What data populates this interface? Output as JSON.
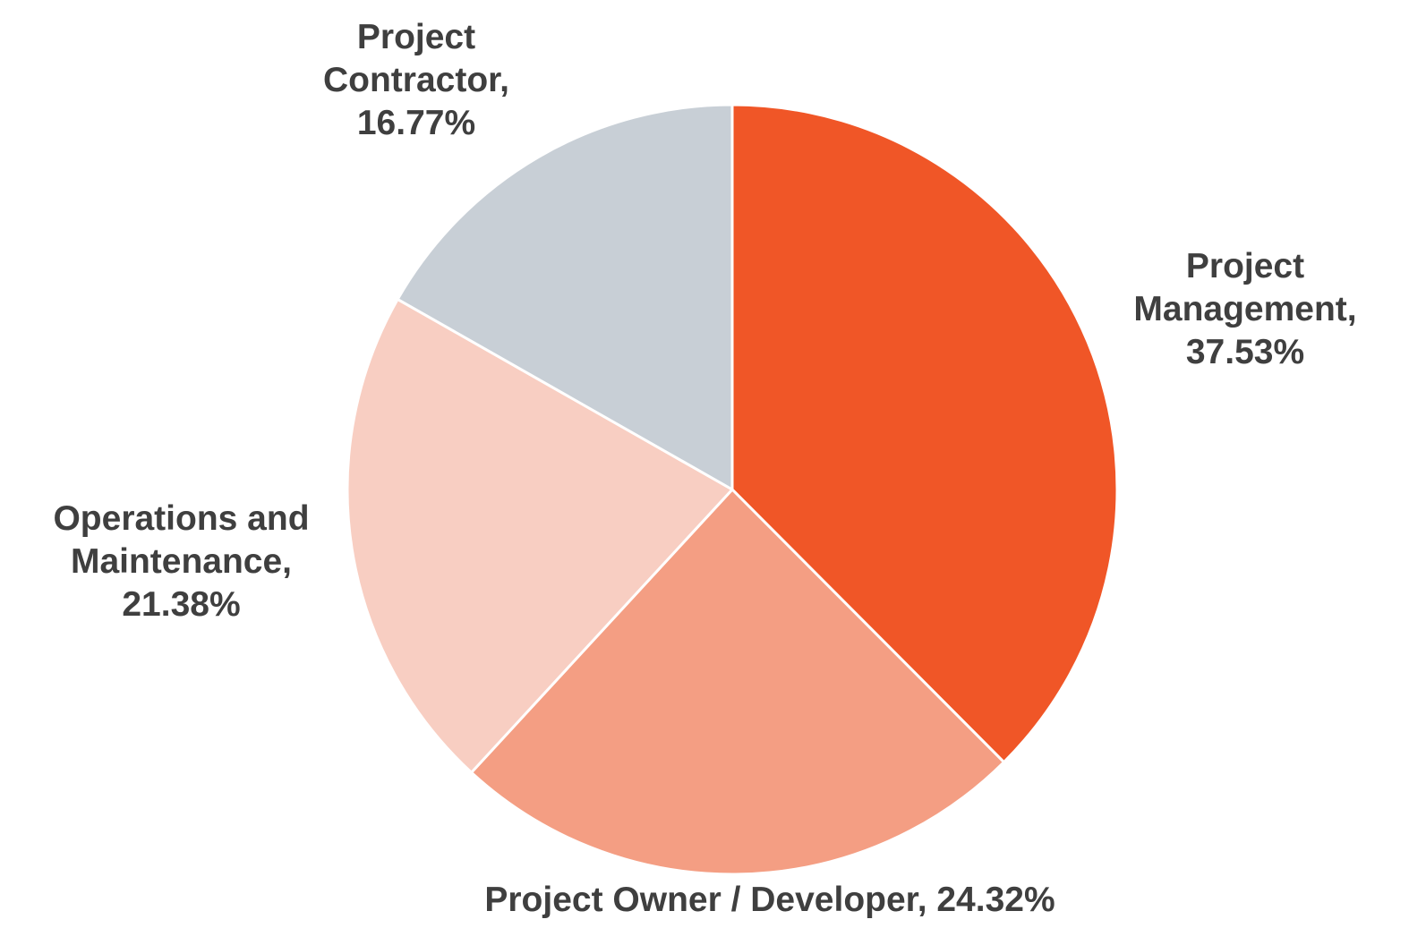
{
  "chart_data": {
    "type": "pie",
    "title": "",
    "start": "top",
    "direction": "clockwise",
    "slices": [
      {
        "name": "Project Management",
        "value": 37.53,
        "label_lines": [
          "Project",
          "Management,",
          "37.53%"
        ],
        "color": "#f05627"
      },
      {
        "name": "Project Owner / Developer",
        "value": 24.32,
        "label_lines": [
          "Project Owner / Developer, 24.32%"
        ],
        "color": "#f49e83"
      },
      {
        "name": "Operations and Maintenance",
        "value": 21.38,
        "label_lines": [
          "Operations and",
          "Maintenance,",
          "21.38%"
        ],
        "color": "#f8cec2"
      },
      {
        "name": "Project Contractor",
        "value": 16.77,
        "label_lines": [
          "Project",
          "Contractor,",
          "16.77%"
        ],
        "color": "#c8cfd6"
      }
    ],
    "separator_color": "#ffffff"
  }
}
